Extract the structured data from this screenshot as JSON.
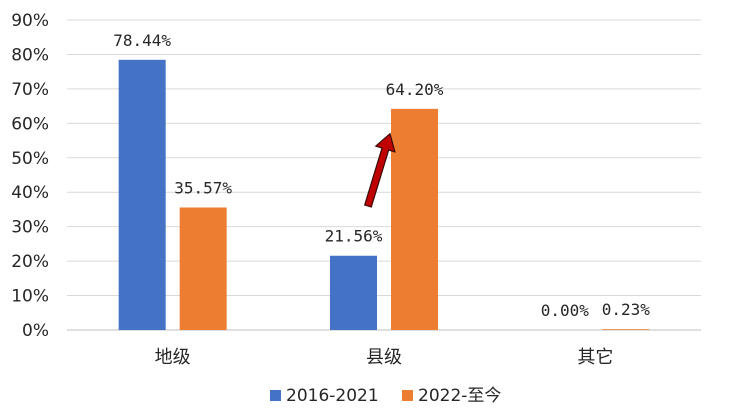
{
  "chart_data": {
    "type": "bar",
    "title": "",
    "xlabel": "",
    "ylabel": "",
    "categories": [
      "地级",
      "县级",
      "其它"
    ],
    "series": [
      {
        "name": "2016-2021",
        "values": [
          78.44,
          21.56,
          0.0
        ],
        "labels": [
          "78.44%",
          "21.56%",
          "0.00%"
        ],
        "color": "#4472C4"
      },
      {
        "name": "2022-至今",
        "values": [
          35.57,
          64.2,
          0.23
        ],
        "labels": [
          "35.57%",
          "64.20%",
          "0.23%"
        ],
        "color": "#ED7D31"
      }
    ],
    "ylim": [
      0,
      90
    ],
    "yticks": [
      0,
      10,
      20,
      30,
      40,
      50,
      60,
      70,
      80,
      90
    ],
    "ytick_labels": [
      "0%",
      "10%",
      "20%",
      "30%",
      "40%",
      "50%",
      "60%",
      "70%",
      "80%",
      "90%"
    ],
    "grid": true,
    "legend_position": "bottom",
    "annotation": {
      "type": "arrow",
      "color": "#C00000",
      "from": {
        "category": "县级",
        "value": 36
      },
      "to": {
        "category": "县级",
        "value": 57
      }
    }
  }
}
